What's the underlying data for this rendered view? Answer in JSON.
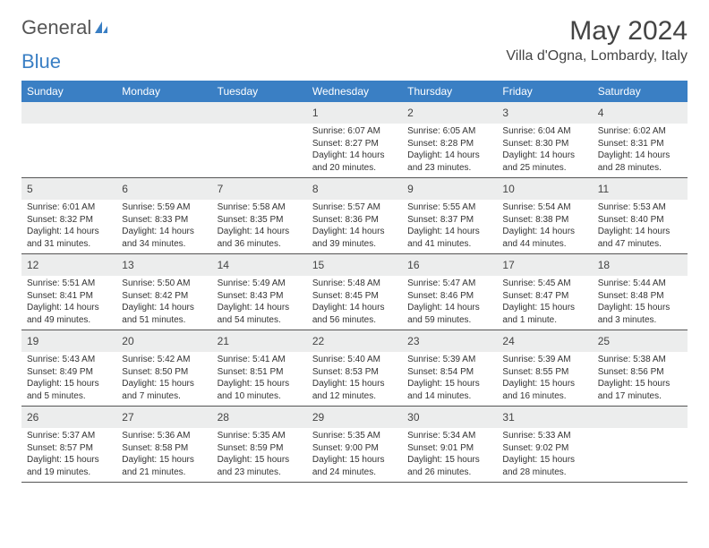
{
  "logo": {
    "text1": "General",
    "text2": "Blue"
  },
  "title": "May 2024",
  "location": "Villa d'Ogna, Lombardy, Italy",
  "colors": {
    "header_bg": "#3a7fc4",
    "header_text": "#ffffff",
    "daynum_bg": "#eceded",
    "border": "#555555",
    "body_text": "#333333"
  },
  "day_labels": [
    "Sunday",
    "Monday",
    "Tuesday",
    "Wednesday",
    "Thursday",
    "Friday",
    "Saturday"
  ],
  "weeks": [
    [
      {
        "n": "",
        "sr": "",
        "ss": "",
        "dl": ""
      },
      {
        "n": "",
        "sr": "",
        "ss": "",
        "dl": ""
      },
      {
        "n": "",
        "sr": "",
        "ss": "",
        "dl": ""
      },
      {
        "n": "1",
        "sr": "Sunrise: 6:07 AM",
        "ss": "Sunset: 8:27 PM",
        "dl": "Daylight: 14 hours and 20 minutes."
      },
      {
        "n": "2",
        "sr": "Sunrise: 6:05 AM",
        "ss": "Sunset: 8:28 PM",
        "dl": "Daylight: 14 hours and 23 minutes."
      },
      {
        "n": "3",
        "sr": "Sunrise: 6:04 AM",
        "ss": "Sunset: 8:30 PM",
        "dl": "Daylight: 14 hours and 25 minutes."
      },
      {
        "n": "4",
        "sr": "Sunrise: 6:02 AM",
        "ss": "Sunset: 8:31 PM",
        "dl": "Daylight: 14 hours and 28 minutes."
      }
    ],
    [
      {
        "n": "5",
        "sr": "Sunrise: 6:01 AM",
        "ss": "Sunset: 8:32 PM",
        "dl": "Daylight: 14 hours and 31 minutes."
      },
      {
        "n": "6",
        "sr": "Sunrise: 5:59 AM",
        "ss": "Sunset: 8:33 PM",
        "dl": "Daylight: 14 hours and 34 minutes."
      },
      {
        "n": "7",
        "sr": "Sunrise: 5:58 AM",
        "ss": "Sunset: 8:35 PM",
        "dl": "Daylight: 14 hours and 36 minutes."
      },
      {
        "n": "8",
        "sr": "Sunrise: 5:57 AM",
        "ss": "Sunset: 8:36 PM",
        "dl": "Daylight: 14 hours and 39 minutes."
      },
      {
        "n": "9",
        "sr": "Sunrise: 5:55 AM",
        "ss": "Sunset: 8:37 PM",
        "dl": "Daylight: 14 hours and 41 minutes."
      },
      {
        "n": "10",
        "sr": "Sunrise: 5:54 AM",
        "ss": "Sunset: 8:38 PM",
        "dl": "Daylight: 14 hours and 44 minutes."
      },
      {
        "n": "11",
        "sr": "Sunrise: 5:53 AM",
        "ss": "Sunset: 8:40 PM",
        "dl": "Daylight: 14 hours and 47 minutes."
      }
    ],
    [
      {
        "n": "12",
        "sr": "Sunrise: 5:51 AM",
        "ss": "Sunset: 8:41 PM",
        "dl": "Daylight: 14 hours and 49 minutes."
      },
      {
        "n": "13",
        "sr": "Sunrise: 5:50 AM",
        "ss": "Sunset: 8:42 PM",
        "dl": "Daylight: 14 hours and 51 minutes."
      },
      {
        "n": "14",
        "sr": "Sunrise: 5:49 AM",
        "ss": "Sunset: 8:43 PM",
        "dl": "Daylight: 14 hours and 54 minutes."
      },
      {
        "n": "15",
        "sr": "Sunrise: 5:48 AM",
        "ss": "Sunset: 8:45 PM",
        "dl": "Daylight: 14 hours and 56 minutes."
      },
      {
        "n": "16",
        "sr": "Sunrise: 5:47 AM",
        "ss": "Sunset: 8:46 PM",
        "dl": "Daylight: 14 hours and 59 minutes."
      },
      {
        "n": "17",
        "sr": "Sunrise: 5:45 AM",
        "ss": "Sunset: 8:47 PM",
        "dl": "Daylight: 15 hours and 1 minute."
      },
      {
        "n": "18",
        "sr": "Sunrise: 5:44 AM",
        "ss": "Sunset: 8:48 PM",
        "dl": "Daylight: 15 hours and 3 minutes."
      }
    ],
    [
      {
        "n": "19",
        "sr": "Sunrise: 5:43 AM",
        "ss": "Sunset: 8:49 PM",
        "dl": "Daylight: 15 hours and 5 minutes."
      },
      {
        "n": "20",
        "sr": "Sunrise: 5:42 AM",
        "ss": "Sunset: 8:50 PM",
        "dl": "Daylight: 15 hours and 7 minutes."
      },
      {
        "n": "21",
        "sr": "Sunrise: 5:41 AM",
        "ss": "Sunset: 8:51 PM",
        "dl": "Daylight: 15 hours and 10 minutes."
      },
      {
        "n": "22",
        "sr": "Sunrise: 5:40 AM",
        "ss": "Sunset: 8:53 PM",
        "dl": "Daylight: 15 hours and 12 minutes."
      },
      {
        "n": "23",
        "sr": "Sunrise: 5:39 AM",
        "ss": "Sunset: 8:54 PM",
        "dl": "Daylight: 15 hours and 14 minutes."
      },
      {
        "n": "24",
        "sr": "Sunrise: 5:39 AM",
        "ss": "Sunset: 8:55 PM",
        "dl": "Daylight: 15 hours and 16 minutes."
      },
      {
        "n": "25",
        "sr": "Sunrise: 5:38 AM",
        "ss": "Sunset: 8:56 PM",
        "dl": "Daylight: 15 hours and 17 minutes."
      }
    ],
    [
      {
        "n": "26",
        "sr": "Sunrise: 5:37 AM",
        "ss": "Sunset: 8:57 PM",
        "dl": "Daylight: 15 hours and 19 minutes."
      },
      {
        "n": "27",
        "sr": "Sunrise: 5:36 AM",
        "ss": "Sunset: 8:58 PM",
        "dl": "Daylight: 15 hours and 21 minutes."
      },
      {
        "n": "28",
        "sr": "Sunrise: 5:35 AM",
        "ss": "Sunset: 8:59 PM",
        "dl": "Daylight: 15 hours and 23 minutes."
      },
      {
        "n": "29",
        "sr": "Sunrise: 5:35 AM",
        "ss": "Sunset: 9:00 PM",
        "dl": "Daylight: 15 hours and 24 minutes."
      },
      {
        "n": "30",
        "sr": "Sunrise: 5:34 AM",
        "ss": "Sunset: 9:01 PM",
        "dl": "Daylight: 15 hours and 26 minutes."
      },
      {
        "n": "31",
        "sr": "Sunrise: 5:33 AM",
        "ss": "Sunset: 9:02 PM",
        "dl": "Daylight: 15 hours and 28 minutes."
      },
      {
        "n": "",
        "sr": "",
        "ss": "",
        "dl": ""
      }
    ]
  ]
}
